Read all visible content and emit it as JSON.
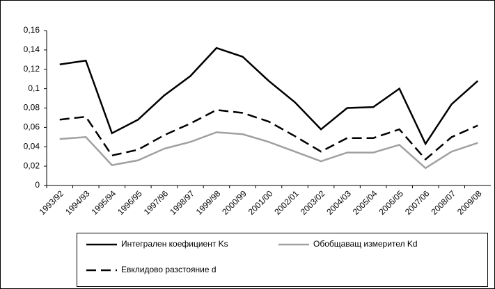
{
  "chart_data": {
    "type": "line",
    "categories": [
      "1993/92",
      "1994/93",
      "1995/94",
      "1996/95",
      "1997/96",
      "1998/97",
      "1999/98",
      "2000/99",
      "2001/00",
      "2002/01",
      "2003/02",
      "2004/03",
      "2005/04",
      "2006/05",
      "2007/06",
      "2008/07",
      "2009/08"
    ],
    "series": [
      {
        "name": "Интегрален коефициент Ks",
        "color": "#000000",
        "dash": "solid",
        "values": [
          0.125,
          0.129,
          0.054,
          0.068,
          0.093,
          0.113,
          0.142,
          0.133,
          0.108,
          0.086,
          0.058,
          0.08,
          0.081,
          0.1,
          0.043,
          0.084,
          0.108
        ]
      },
      {
        "name": "Обобщаващ измерител Kd",
        "color": "#a0a0a0",
        "dash": "solid",
        "values": [
          0.048,
          0.05,
          0.021,
          0.026,
          0.038,
          0.045,
          0.055,
          0.053,
          0.045,
          0.035,
          0.025,
          0.034,
          0.034,
          0.042,
          0.018,
          0.035,
          0.044
        ]
      },
      {
        "name": "Евклидово разстояние d",
        "color": "#000000",
        "dash": "dashed",
        "values": [
          0.068,
          0.071,
          0.031,
          0.037,
          0.052,
          0.064,
          0.078,
          0.075,
          0.066,
          0.051,
          0.035,
          0.049,
          0.049,
          0.058,
          0.027,
          0.05,
          0.062
        ]
      }
    ],
    "ylim": [
      0,
      0.16
    ],
    "yticks": [
      0,
      {
        "value": 0.02,
        "label": "0,02"
      },
      {
        "value": 0.04,
        "label": "0,04"
      },
      {
        "value": 0.06,
        "label": "0,06"
      },
      {
        "value": 0.08,
        "label": "0,08"
      },
      {
        "value": 0.1,
        "label": "0,1"
      },
      {
        "value": 0.12,
        "label": "0,12"
      },
      {
        "value": 0.14,
        "label": "0,14"
      },
      {
        "value": 0.16,
        "label": "0,16"
      }
    ],
    "grid": false,
    "legend": "bottom"
  }
}
